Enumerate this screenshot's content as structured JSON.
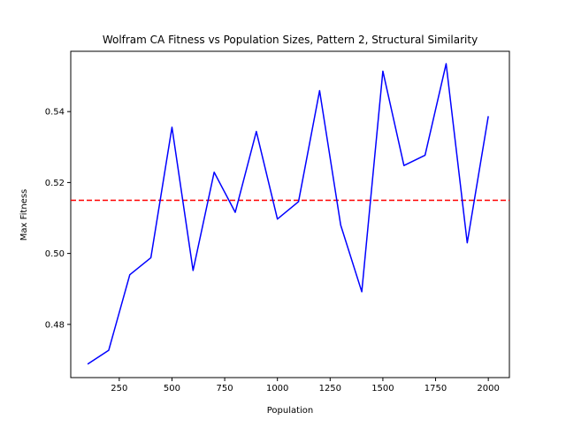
{
  "chart_data": {
    "type": "line",
    "title": "Wolfram CA Fitness vs Population Sizes, Pattern 2, Structural Similarity",
    "xlabel": "Population",
    "ylabel": "Max Fitness",
    "xlim": [
      20,
      2100
    ],
    "ylim": [
      0.465,
      0.557
    ],
    "xticks": [
      250,
      500,
      750,
      1000,
      1250,
      1500,
      1750,
      2000
    ],
    "yticks": [
      0.48,
      0.5,
      0.52,
      0.54
    ],
    "x_tick_labels": [
      "250",
      "500",
      "750",
      "1000",
      "1250",
      "1500",
      "1750",
      "2000"
    ],
    "y_tick_labels": [
      "0.48",
      "0.50",
      "0.52",
      "0.54"
    ],
    "grid": false,
    "series": [
      {
        "color": "#0000ff",
        "x": [
          100,
          200,
          300,
          400,
          500,
          600,
          700,
          800,
          900,
          1000,
          1100,
          1200,
          1300,
          1400,
          1500,
          1600,
          1700,
          1800,
          1900,
          2000
        ],
        "values": [
          0.4688,
          0.4727,
          0.494,
          0.4988,
          0.5356,
          0.4952,
          0.5229,
          0.5116,
          0.5344,
          0.5097,
          0.5146,
          0.5459,
          0.508,
          0.4892,
          0.5514,
          0.5248,
          0.5277,
          0.5535,
          0.503,
          0.5387
        ]
      }
    ],
    "reference_line": {
      "y": 0.515,
      "color": "#ff0000",
      "style": "dashed"
    }
  }
}
